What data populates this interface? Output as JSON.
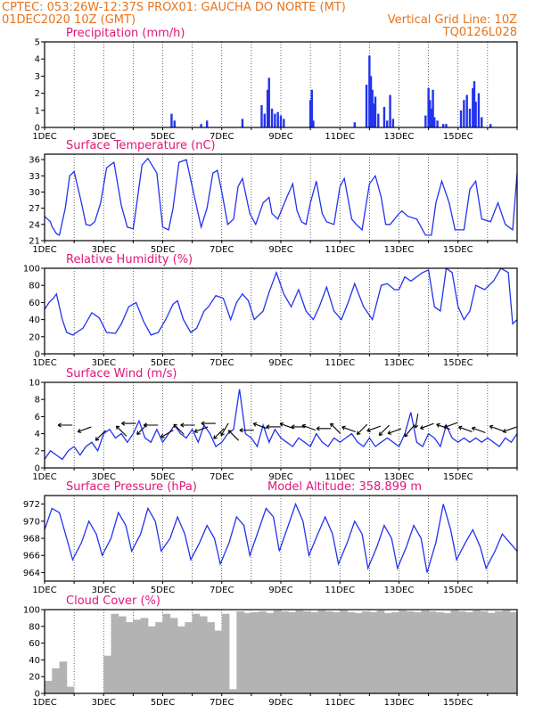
{
  "header": {
    "line1": "CPTEC:   053:26W-12:37S   PROX01: GAUCHA DO NORTE (MT)",
    "run": "01DEC2020 10Z (GMT)",
    "grid_note": "Vertical Grid Line: 10Z",
    "code": "TQ0126L028"
  },
  "colors": {
    "header": "#e8731c",
    "title": "#e0157a",
    "line": "#2233ee",
    "cloud": "#b3b3b3"
  },
  "x_labels": [
    "1DEC",
    "3DEC",
    "5DEC",
    "7DEC",
    "9DEC",
    "11DEC",
    "13DEC",
    "15DEC"
  ],
  "model_altitude": "Model Altitude: 358.899 m",
  "chart_data": [
    {
      "type": "bar",
      "title": "Precipitation (mm/h)",
      "ylim": [
        0,
        5
      ],
      "yticks": [
        0,
        1,
        2,
        3,
        4,
        5
      ],
      "x": [
        4.3,
        4.4,
        5.3,
        5.5,
        6.7,
        7.35,
        7.45,
        7.55,
        7.6,
        7.7,
        7.8,
        7.9,
        8.0,
        8.1,
        9.0,
        9.05,
        9.1,
        10.5,
        10.9,
        11.0,
        11.05,
        11.1,
        11.15,
        11.2,
        11.3,
        11.5,
        11.6,
        11.7,
        11.8,
        12.9,
        13.0,
        13.05,
        13.1,
        13.15,
        13.2,
        13.3,
        13.5,
        13.6,
        14.1,
        14.2,
        14.3,
        14.4,
        14.5,
        14.55,
        14.6,
        14.7,
        14.8,
        15.1
      ],
      "values": [
        0.8,
        0.4,
        0.2,
        0.4,
        0.5,
        1.3,
        0.8,
        2.2,
        2.9,
        1.1,
        0.8,
        0.9,
        0.7,
        0.5,
        1.6,
        2.2,
        0.4,
        0.3,
        2.5,
        4.2,
        3.0,
        2.2,
        1.4,
        1.8,
        0.8,
        1.2,
        0.4,
        1.9,
        0.5,
        0.7,
        2.3,
        1.6,
        1.1,
        2.2,
        0.6,
        0.4,
        0.2,
        0.2,
        1.0,
        1.6,
        1.9,
        1.1,
        2.3,
        2.7,
        1.5,
        2.0,
        0.6,
        0.2
      ]
    },
    {
      "type": "line",
      "title": "Surface Temperature (nC)",
      "ylim": [
        21,
        37
      ],
      "yticks": [
        21,
        24,
        27,
        30,
        33,
        36
      ],
      "x": [
        0.0,
        0.1,
        0.2,
        0.25,
        0.4,
        0.5,
        0.7,
        0.85,
        1.0,
        1.25,
        1.4,
        1.55,
        1.7,
        1.9,
        2.1,
        2.35,
        2.6,
        2.8,
        3.0,
        3.1,
        3.3,
        3.5,
        3.8,
        4.0,
        4.2,
        4.35,
        4.55,
        4.8,
        5.1,
        5.3,
        5.5,
        5.7,
        5.85,
        6.0,
        6.2,
        6.4,
        6.55,
        6.7,
        6.95,
        7.15,
        7.4,
        7.6,
        7.7,
        7.9,
        8.2,
        8.4,
        8.55,
        8.7,
        8.85,
        9.0,
        9.2,
        9.4,
        9.55,
        9.8,
        10.0,
        10.15,
        10.4,
        10.55,
        10.75,
        11.0,
        11.2,
        11.4,
        11.55,
        11.7,
        12.0,
        12.1,
        12.3,
        12.6,
        12.9,
        13.1,
        13.25,
        13.45,
        13.7,
        13.9,
        14.2,
        14.4,
        14.6,
        14.8,
        15.1,
        15.35,
        15.6,
        15.85,
        16.0
      ],
      "values": [
        25.5,
        25.0,
        24.5,
        23.6,
        22.3,
        22.0,
        27.0,
        33.0,
        33.8,
        28.0,
        24.0,
        23.8,
        24.5,
        28.0,
        34.5,
        35.5,
        27.5,
        23.5,
        23.2,
        27.0,
        35.0,
        36.2,
        33.5,
        23.5,
        23.0,
        27.0,
        35.5,
        36.0,
        28.5,
        23.5,
        27.0,
        33.5,
        34.0,
        30.0,
        24.0,
        25.0,
        31.0,
        32.5,
        26.0,
        24.0,
        28.0,
        29.0,
        26.0,
        25.0,
        29.0,
        31.5,
        26.5,
        24.5,
        24.0,
        28.0,
        32.0,
        26.0,
        24.5,
        24.0,
        31.0,
        32.5,
        25.0,
        24.0,
        23.0,
        31.5,
        33.0,
        29.0,
        24.0,
        24.0,
        26.0,
        26.5,
        25.5,
        25.0,
        22.0,
        22.0,
        28.0,
        32.0,
        28.0,
        23.0,
        23.0,
        30.5,
        32.0,
        25.0,
        24.5,
        28.0,
        24.0,
        23.0,
        33.5
      ]
    },
    {
      "type": "line",
      "title": "Relative Humidity (%)",
      "ylim": [
        0,
        100
      ],
      "yticks": [
        0,
        20,
        40,
        60,
        80,
        100
      ],
      "x": [
        0.0,
        0.15,
        0.3,
        0.4,
        0.6,
        0.75,
        0.95,
        1.3,
        1.6,
        1.85,
        2.1,
        2.4,
        2.6,
        2.85,
        3.1,
        3.35,
        3.6,
        3.85,
        4.1,
        4.35,
        4.5,
        4.7,
        4.95,
        5.15,
        5.4,
        5.55,
        5.8,
        6.05,
        6.3,
        6.5,
        6.7,
        6.9,
        7.1,
        7.4,
        7.6,
        7.85,
        8.1,
        8.35,
        8.6,
        8.85,
        9.1,
        9.3,
        9.55,
        9.8,
        10.05,
        10.3,
        10.5,
        10.8,
        11.1,
        11.4,
        11.6,
        11.85,
        12.0,
        12.2,
        12.4,
        12.6,
        12.8,
        13.0,
        13.2,
        13.4,
        13.6,
        13.8,
        14.0,
        14.2,
        14.4,
        14.6,
        14.9,
        15.2,
        15.45,
        15.7,
        15.85,
        16.0
      ],
      "values": [
        52,
        60,
        65,
        70,
        40,
        25,
        22,
        30,
        48,
        42,
        25,
        24,
        35,
        55,
        60,
        38,
        22,
        25,
        40,
        58,
        62,
        40,
        25,
        30,
        50,
        55,
        68,
        65,
        40,
        60,
        70,
        62,
        40,
        50,
        72,
        95,
        70,
        55,
        75,
        50,
        40,
        55,
        78,
        50,
        40,
        62,
        82,
        55,
        40,
        80,
        82,
        75,
        75,
        90,
        85,
        90,
        95,
        98,
        55,
        50,
        100,
        95,
        55,
        40,
        50,
        80,
        75,
        85,
        100,
        95,
        35,
        40
      ]
    },
    {
      "type": "line",
      "title": "Surface Wind (m/s)",
      "ylim": [
        0,
        10
      ],
      "yticks": [
        0,
        2,
        4,
        6,
        8,
        10
      ],
      "x": [
        0.0,
        0.2,
        0.4,
        0.6,
        0.8,
        1.0,
        1.2,
        1.4,
        1.6,
        1.8,
        2.0,
        2.2,
        2.4,
        2.6,
        2.8,
        3.0,
        3.2,
        3.4,
        3.6,
        3.8,
        4.0,
        4.2,
        4.4,
        4.6,
        4.8,
        5.0,
        5.2,
        5.4,
        5.6,
        5.8,
        6.0,
        6.2,
        6.4,
        6.6,
        6.8,
        7.0,
        7.2,
        7.4,
        7.6,
        7.8,
        8.0,
        8.2,
        8.4,
        8.6,
        8.8,
        9.0,
        9.2,
        9.4,
        9.6,
        9.8,
        10.0,
        10.2,
        10.4,
        10.6,
        10.8,
        11.0,
        11.2,
        11.4,
        11.6,
        11.8,
        12.0,
        12.2,
        12.4,
        12.6,
        12.8,
        13.0,
        13.2,
        13.4,
        13.6,
        13.8,
        14.0,
        14.2,
        14.4,
        14.6,
        14.8,
        15.0,
        15.2,
        15.4,
        15.6,
        15.8,
        16.0
      ],
      "values": [
        1.0,
        2.0,
        1.5,
        1.0,
        2.0,
        2.5,
        1.5,
        2.5,
        3.0,
        2.0,
        4.0,
        4.5,
        3.5,
        4.0,
        3.0,
        4.0,
        5.5,
        3.5,
        3.0,
        4.5,
        3.0,
        4.0,
        5.0,
        4.0,
        3.5,
        4.5,
        3.0,
        5.0,
        4.0,
        2.5,
        3.0,
        4.0,
        4.5,
        9.2,
        4.0,
        3.5,
        2.5,
        5.0,
        3.0,
        4.5,
        3.5,
        3.0,
        2.5,
        3.5,
        3.0,
        2.5,
        4.0,
        3.0,
        2.5,
        3.5,
        3.0,
        3.5,
        4.0,
        3.0,
        2.5,
        3.5,
        2.5,
        3.0,
        3.5,
        3.0,
        2.5,
        4.0,
        6.5,
        3.0,
        2.5,
        4.0,
        3.5,
        2.5,
        5.0,
        3.5,
        3.0,
        3.5,
        3.0,
        3.5,
        3.0,
        3.5,
        3.0,
        2.5,
        3.5,
        3.0,
        4.0
      ]
    },
    {
      "type": "line",
      "title": "Surface Pressure (hPa)",
      "ylim": [
        963,
        973
      ],
      "yticks": [
        964,
        966,
        968,
        970,
        972
      ],
      "x": [
        0.0,
        0.25,
        0.5,
        0.75,
        0.95,
        1.25,
        1.5,
        1.75,
        1.95,
        2.25,
        2.5,
        2.75,
        2.95,
        3.25,
        3.5,
        3.75,
        3.95,
        4.25,
        4.5,
        4.75,
        4.95,
        5.25,
        5.5,
        5.75,
        5.95,
        6.25,
        6.5,
        6.75,
        6.95,
        7.25,
        7.5,
        7.75,
        7.95,
        8.25,
        8.5,
        8.75,
        8.95,
        9.25,
        9.5,
        9.75,
        9.95,
        10.25,
        10.5,
        10.75,
        10.95,
        11.25,
        11.5,
        11.75,
        11.95,
        12.25,
        12.5,
        12.75,
        12.95,
        13.25,
        13.5,
        13.75,
        13.95,
        14.25,
        14.5,
        14.75,
        14.95,
        15.25,
        15.5,
        15.75,
        16.0
      ],
      "values": [
        969.0,
        971.5,
        971.0,
        968.0,
        965.5,
        967.5,
        970.0,
        968.5,
        966.0,
        968.0,
        971.0,
        969.5,
        966.5,
        968.5,
        971.5,
        970.0,
        966.5,
        968.0,
        970.5,
        968.5,
        965.5,
        967.5,
        969.5,
        968.0,
        965.0,
        967.5,
        970.5,
        969.5,
        966.0,
        969.0,
        971.5,
        970.5,
        966.5,
        969.5,
        972.0,
        970.0,
        966.0,
        968.5,
        970.5,
        968.5,
        965.0,
        967.5,
        970.0,
        968.5,
        964.5,
        967.0,
        969.5,
        968.0,
        964.5,
        967.0,
        969.5,
        968.0,
        964.0,
        967.5,
        972.0,
        969.0,
        965.5,
        967.5,
        969.0,
        967.0,
        964.5,
        966.5,
        968.5,
        967.5,
        966.5
      ]
    },
    {
      "type": "bar",
      "title": "Cloud Cover (%)",
      "ylim": [
        0,
        100
      ],
      "yticks": [
        0,
        20,
        40,
        60,
        80,
        100
      ],
      "x": [
        0.0,
        0.25,
        0.5,
        0.75,
        1.0,
        1.25,
        1.5,
        1.75,
        2.0,
        2.25,
        2.5,
        2.75,
        3.0,
        3.25,
        3.5,
        3.75,
        4.0,
        4.25,
        4.5,
        4.75,
        5.0,
        5.25,
        5.5,
        5.75,
        6.0,
        6.25,
        6.5,
        6.75,
        7.0,
        7.25,
        7.5,
        7.75,
        8.0,
        8.25,
        8.5,
        8.75,
        9.0,
        9.25,
        9.5,
        9.75,
        10.0,
        10.25,
        10.5,
        10.75,
        11.0,
        11.25,
        11.5,
        11.75,
        12.0,
        12.25,
        12.5,
        12.75,
        13.0,
        13.25,
        13.5,
        13.75,
        14.0,
        14.25,
        14.5,
        14.75,
        15.0,
        15.25,
        15.5,
        15.75
      ],
      "values": [
        15,
        30,
        38,
        8,
        0,
        0,
        0,
        0,
        45,
        95,
        92,
        85,
        88,
        90,
        80,
        85,
        95,
        90,
        80,
        85,
        95,
        92,
        85,
        75,
        95,
        5,
        98,
        96,
        97,
        98,
        96,
        99,
        98,
        97,
        99,
        98,
        97,
        99,
        98,
        97,
        99,
        97,
        96,
        98,
        97,
        99,
        96,
        97,
        99,
        98,
        97,
        99,
        98,
        97,
        96,
        99,
        98,
        97,
        99,
        98,
        96,
        98,
        99,
        97
      ]
    }
  ],
  "wind_arrows": {
    "x": [
      0.7,
      1.35,
      1.9,
      2.6,
      2.85,
      3.3,
      3.6,
      4.15,
      4.55,
      4.85,
      5.3,
      5.55,
      5.9,
      6.1,
      6.4,
      6.85,
      7.3,
      7.75,
      8.2,
      8.6,
      8.95,
      9.45,
      9.85,
      10.3,
      10.75,
      11.15,
      11.5,
      11.85,
      12.35,
      12.6,
      12.95,
      13.5,
      13.75,
      14.25,
      14.7,
      15.3,
      15.75
    ],
    "y": [
      5.0,
      4.5,
      3.8,
      4.3,
      5.2,
      4.5,
      5.0,
      4.0,
      4.5,
      5.0,
      4.5,
      5.2,
      4.0,
      4.5,
      3.8,
      4.4,
      4.9,
      4.8,
      4.9,
      4.8,
      4.7,
      4.6,
      4.6,
      4.5,
      4.5,
      4.6,
      4.4,
      4.3,
      4.3,
      5.5,
      4.9,
      4.8,
      5.0,
      4.5,
      4.4,
      4.6,
      4.5
    ],
    "dir_deg": [
      180,
      200,
      225,
      135,
      180,
      225,
      180,
      210,
      135,
      180,
      200,
      180,
      225,
      240,
      135,
      180,
      160,
      180,
      160,
      180,
      160,
      180,
      135,
      160,
      225,
      200,
      225,
      200,
      230,
      260,
      200,
      160,
      200,
      160,
      160,
      160,
      200
    ]
  }
}
